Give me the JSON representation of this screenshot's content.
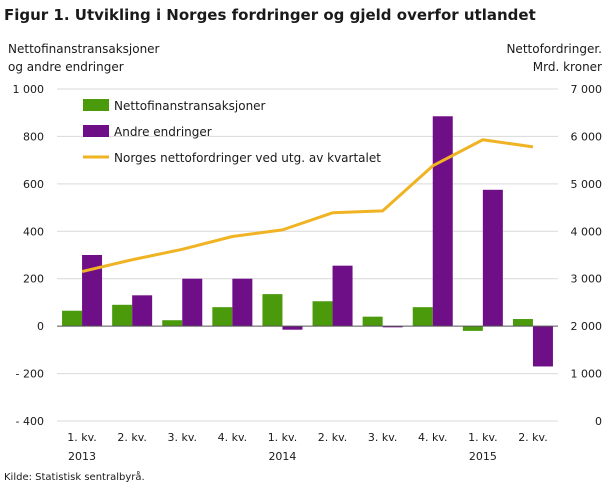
{
  "title": "Figur 1. Utvikling i Norges fordringer og gjeld overfor utlandet",
  "left_axis_title": [
    "Nettofinanstransaksjoner",
    "og andre endringer"
  ],
  "right_axis_title": [
    "Nettofordringer.",
    "Mrd. kroner"
  ],
  "source": "Kilde: Statistisk sentralbyrå.",
  "colors": {
    "net_transactions": "#4a9a0c",
    "other_changes": "#6f0f87",
    "net_claims": "#f0b323",
    "grid": "#d9d9d9"
  },
  "chart_data": {
    "type": "bar",
    "quarter_labels": [
      "1. kv.",
      "2. kv.",
      "3. kv.",
      "4. kv.",
      "1. kv.",
      "2. kv.",
      "3. kv.",
      "4. kv.",
      "1. kv.",
      "2. kv."
    ],
    "year_labels": [
      {
        "year": "2013",
        "index": 0
      },
      {
        "year": "2014",
        "index": 4
      },
      {
        "year": "2015",
        "index": 8
      }
    ],
    "y_left": {
      "range": [
        -400,
        1000
      ],
      "ticks": [
        -400,
        -200,
        0,
        200,
        400,
        600,
        800,
        1000
      ],
      "tick_labels": [
        "- 400",
        "- 200",
        "0",
        "200",
        "400",
        "600",
        "800",
        "1 000"
      ]
    },
    "y_right": {
      "range": [
        0,
        7000
      ],
      "ticks": [
        0,
        1000,
        2000,
        3000,
        4000,
        5000,
        6000,
        7000
      ],
      "tick_labels": [
        "0",
        "1 000",
        "2 000",
        "3 000",
        "4 000",
        "5 000",
        "6 000",
        "7 000"
      ]
    },
    "grid": true,
    "legend_position": "top-left",
    "series": [
      {
        "name": "Nettofinanstransaksjoner",
        "type": "bar",
        "axis": "left",
        "values": [
          65,
          90,
          25,
          80,
          135,
          105,
          40,
          80,
          -20,
          30
        ]
      },
      {
        "name": "Andre endringer",
        "type": "bar",
        "axis": "left",
        "values": [
          300,
          130,
          200,
          200,
          -15,
          255,
          -5,
          885,
          575,
          -170
        ]
      },
      {
        "name": "Norges nettofordringer ved utg. av kvartalet",
        "type": "line",
        "axis": "right",
        "values": [
          3150,
          3400,
          3620,
          3890,
          4030,
          4390,
          4430,
          5380,
          5930,
          5780
        ]
      }
    ]
  }
}
